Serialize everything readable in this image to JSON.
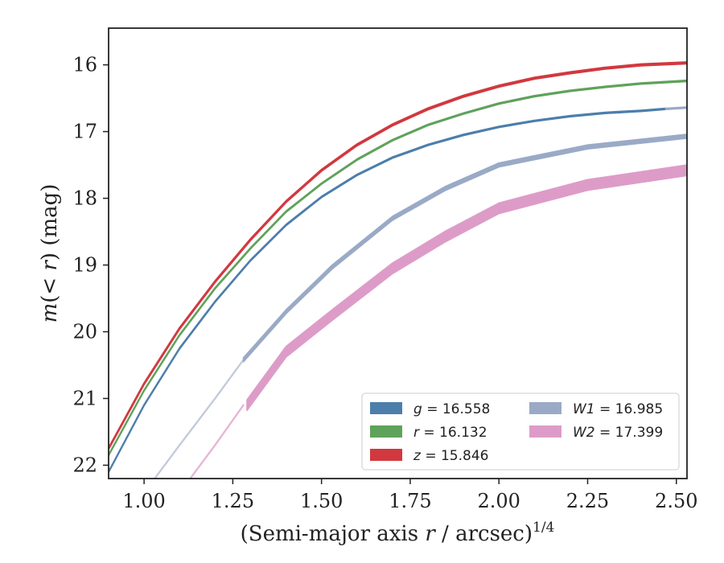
{
  "chart_data": {
    "type": "line",
    "xlabel": "(Semi-major axis r / arcsec)^{1/4}",
    "xlabel_parts": {
      "prefix": "(Semi-major axis ",
      "var": "r",
      "suffix": " / arcsec)",
      "exp": "1/4"
    },
    "ylabel": "m(< r) (mag)",
    "ylabel_parts": {
      "prefix": "m(< ",
      "var": "r",
      "suffix": ") (mag)"
    },
    "xlim": [
      0.9,
      2.53
    ],
    "ylim": [
      22.2,
      15.45
    ],
    "y_inverted": true,
    "xticks": [
      "1.00",
      "1.25",
      "1.50",
      "1.75",
      "2.00",
      "2.25",
      "2.50"
    ],
    "yticks": [
      "16",
      "17",
      "18",
      "19",
      "20",
      "21",
      "22"
    ],
    "legend_position": "lower-right",
    "legend_columns": 2,
    "series": [
      {
        "name": "g = 16.558",
        "label_var": "g",
        "label_val": "= 16.558",
        "color": "#4c7eab",
        "width": 0.02,
        "x": [
          0.9,
          1.0,
          1.1,
          1.2,
          1.3,
          1.4,
          1.5,
          1.6,
          1.7,
          1.8,
          1.9,
          2.0,
          2.1,
          2.2,
          2.3,
          2.4,
          2.47
        ],
        "y": [
          22.1,
          21.1,
          20.25,
          19.55,
          18.93,
          18.4,
          17.98,
          17.65,
          17.39,
          17.2,
          17.05,
          16.93,
          16.84,
          16.77,
          16.72,
          16.69,
          16.66
        ]
      },
      {
        "name": "",
        "color": "#9aaac6",
        "width": 0.02,
        "x": [
          2.47,
          2.53
        ],
        "y": [
          16.66,
          16.64
        ]
      },
      {
        "name": "r = 16.132",
        "label_var": "r",
        "label_val": "= 16.132",
        "color": "#5fa25b",
        "width": 0.02,
        "x": [
          0.9,
          1.0,
          1.1,
          1.2,
          1.3,
          1.4,
          1.5,
          1.6,
          1.7,
          1.8,
          1.9,
          2.0,
          2.1,
          2.2,
          2.3,
          2.4,
          2.53
        ],
        "y": [
          21.85,
          20.88,
          20.05,
          19.35,
          18.75,
          18.2,
          17.78,
          17.42,
          17.13,
          16.9,
          16.73,
          16.58,
          16.47,
          16.39,
          16.33,
          16.28,
          16.24
        ]
      },
      {
        "name": "z = 15.846",
        "label_var": "z",
        "label_val": "= 15.846",
        "color": "#d1393f",
        "width": 0.03,
        "x": [
          0.9,
          1.0,
          1.1,
          1.2,
          1.3,
          1.4,
          1.5,
          1.6,
          1.7,
          1.8,
          1.9,
          2.0,
          2.1,
          2.2,
          2.3,
          2.4,
          2.53
        ],
        "y": [
          21.75,
          20.78,
          19.95,
          19.25,
          18.62,
          18.05,
          17.58,
          17.2,
          16.9,
          16.66,
          16.47,
          16.32,
          16.2,
          16.12,
          16.05,
          16.0,
          15.97
        ]
      },
      {
        "name": "",
        "color": "#c4cadb",
        "width": 0.015,
        "x": [
          1.03,
          1.1,
          1.2,
          1.28
        ],
        "y": [
          22.2,
          21.7,
          21.0,
          20.42
        ]
      },
      {
        "name": "W1 = 16.985",
        "label_var": "W1",
        "label_val": "= 16.985",
        "color": "#9aaac6",
        "width": 0.06,
        "x": [
          1.28,
          1.4,
          1.53,
          1.7,
          1.85,
          2.0,
          2.25,
          2.53
        ],
        "y": [
          20.42,
          19.7,
          19.03,
          18.3,
          17.85,
          17.5,
          17.23,
          17.07
        ]
      },
      {
        "name": "",
        "color": "#e8b4d4",
        "width": 0.015,
        "x": [
          1.13,
          1.2,
          1.28
        ],
        "y": [
          22.2,
          21.7,
          21.1
        ]
      },
      {
        "name": "W2 = 17.399",
        "label_var": "W2",
        "label_val": "= 17.399",
        "color": "#dd9cc8",
        "width": 0.16,
        "x": [
          1.29,
          1.4,
          1.53,
          1.7,
          1.85,
          2.0,
          2.25,
          2.53
        ],
        "y": [
          21.1,
          20.3,
          19.75,
          19.05,
          18.57,
          18.15,
          17.8,
          17.58
        ]
      }
    ]
  }
}
